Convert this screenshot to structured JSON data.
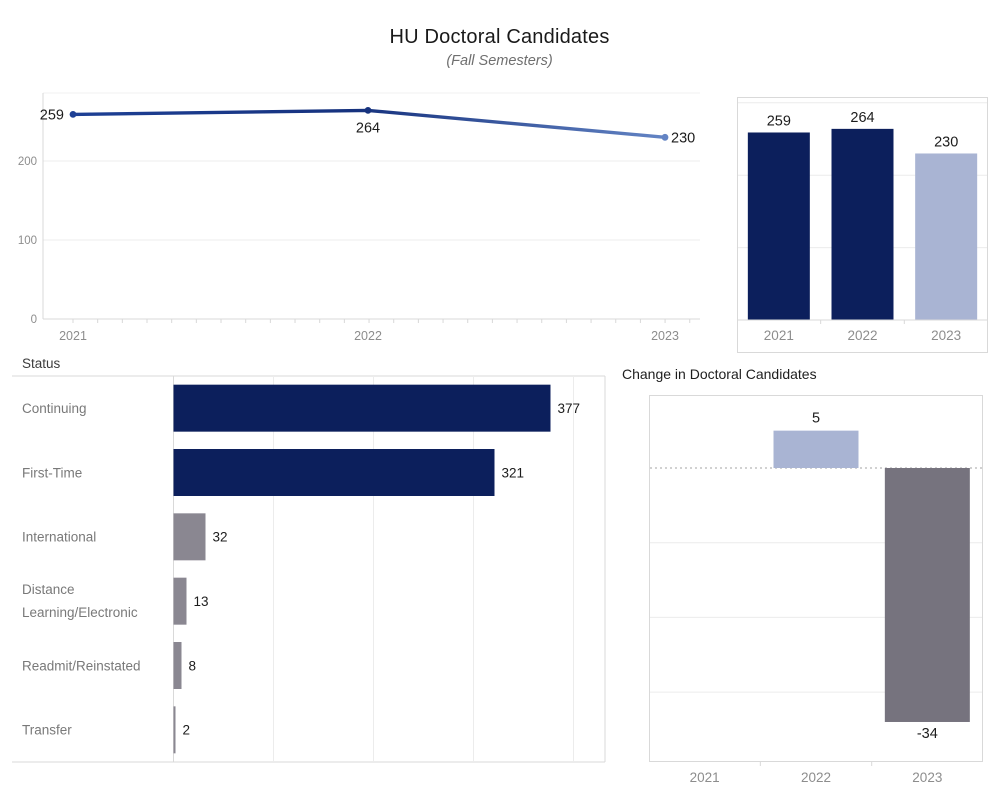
{
  "header": {
    "title": "HU Doctoral Candidates",
    "subtitle": "(Fall Semesters)"
  },
  "colors": {
    "navy": "#0c1f5c",
    "periwinkle": "#a9b4d3",
    "gray": "#8a8791",
    "dark_gray": "#76737e",
    "line_gradient": [
      "#1e4095",
      "#16327e",
      "#6384c4"
    ]
  },
  "chart_data": [
    {
      "id": "trend_line",
      "type": "line",
      "title": "",
      "x": [
        "2021",
        "2022",
        "2023"
      ],
      "values": [
        259,
        264,
        230
      ],
      "point_labels": [
        "259",
        "264",
        "230"
      ],
      "yticks": [
        0,
        100,
        200
      ],
      "ylim": [
        0,
        290
      ],
      "grid": true,
      "legend": "none"
    },
    {
      "id": "candidates_by_year",
      "type": "bar",
      "title": "",
      "categories": [
        "2021",
        "2022",
        "2023"
      ],
      "values": [
        259,
        264,
        230
      ],
      "bar_colors": [
        "navy",
        "navy",
        "periwinkle"
      ],
      "ylim": [
        0,
        310
      ],
      "grid": true,
      "legend": "none"
    },
    {
      "id": "status",
      "type": "bar",
      "orientation": "horizontal",
      "title": "Status",
      "categories": [
        "Continuing",
        "First-Time",
        "International",
        "Distance Learning/Electronic",
        "Readmit/Reinstated",
        "Transfer"
      ],
      "category_lines": [
        [
          "Continuing"
        ],
        [
          "First-Time"
        ],
        [
          "International"
        ],
        [
          "Distance",
          "Learning/Electronic"
        ],
        [
          "Readmit/Reinstated"
        ],
        [
          "Transfer"
        ]
      ],
      "values": [
        377,
        321,
        32,
        13,
        8,
        2
      ],
      "bar_colors": [
        "navy",
        "navy",
        "gray",
        "gray",
        "gray",
        "gray"
      ],
      "xlim": [
        0,
        432
      ],
      "gridline_step": 100,
      "grid": true,
      "legend": "none"
    },
    {
      "id": "change",
      "type": "bar",
      "title": "Change in Doctoral Candidates",
      "categories": [
        "2021",
        "2022",
        "2023"
      ],
      "values": [
        null,
        5,
        -34
      ],
      "value_labels": [
        "",
        "5",
        "-34"
      ],
      "bar_colors": [
        null,
        "periwinkle",
        "dark_gray"
      ],
      "ylim": [
        -40,
        10
      ],
      "gridline_step": 10,
      "zero_line": "dotted",
      "grid": true,
      "legend": "none"
    }
  ]
}
